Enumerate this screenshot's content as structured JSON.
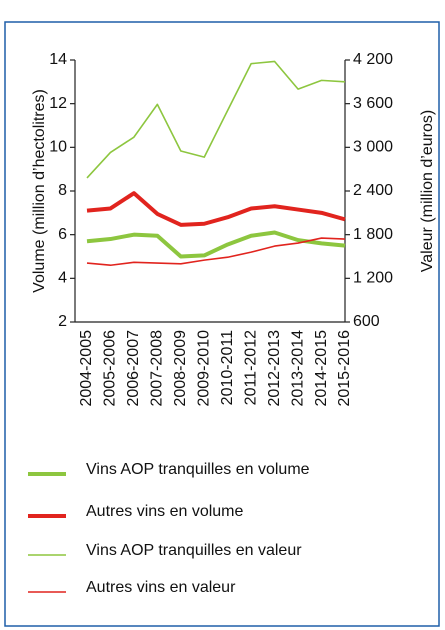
{
  "chart_data": {
    "type": "line",
    "y_label": "Volume (million d’hectolitres)",
    "y2_label": "Valeur (million d’euros)",
    "categories": [
      "2004-2005",
      "2005-2006",
      "2006-2007",
      "2007-2008",
      "2008-2009",
      "2009-2010",
      "2010-2011",
      "2011-2012",
      "2012-2013",
      "2013-2014",
      "2014-2015",
      "2015-2016"
    ],
    "ylim": [
      2,
      14
    ],
    "yticks": [
      2,
      4,
      6,
      8,
      10,
      12,
      14
    ],
    "y2lim": [
      600,
      4200
    ],
    "y2ticks": [
      600,
      {
        "value": 1200,
        "label": "1 200"
      },
      {
        "value": 1800,
        "label": "1 800"
      },
      {
        "value": 2400,
        "label": "2 400"
      },
      {
        "value": 3000,
        "label": "3 000"
      },
      {
        "value": 3600,
        "label": "3 600"
      },
      {
        "value": 4200,
        "label": "4 200"
      }
    ],
    "series": [
      {
        "name": "Vins AOP tranquilles en volume",
        "color": "#8dc63f",
        "line_width": 4,
        "values": [
          5.7,
          5.8,
          6.0,
          5.95,
          5.0,
          5.05,
          5.55,
          5.95,
          6.1,
          5.75,
          5.6,
          5.5
        ]
      },
      {
        "name": "Autres vins en volume",
        "color": "#e1241e",
        "line_width": 4,
        "values": [
          7.1,
          7.2,
          7.9,
          6.95,
          6.45,
          6.5,
          6.8,
          7.2,
          7.3,
          7.15,
          7.0,
          6.7
        ]
      },
      {
        "name": "Vins AOP tranquilles en valeur",
        "color": "#8dc63f",
        "line_width": 1.6,
        "axis": "y2",
        "values": [
          2580,
          2930,
          3140,
          3590,
          2950,
          2865,
          3510,
          4150,
          4180,
          3800,
          3920,
          3900
        ]
      },
      {
        "name": "Autres vins en valeur",
        "color": "#e1241e",
        "line_width": 1.6,
        "axis": "y2",
        "values": [
          1410,
          1380,
          1420,
          1410,
          1400,
          1450,
          1490,
          1560,
          1643,
          1685,
          1753,
          1740
        ]
      }
    ]
  }
}
